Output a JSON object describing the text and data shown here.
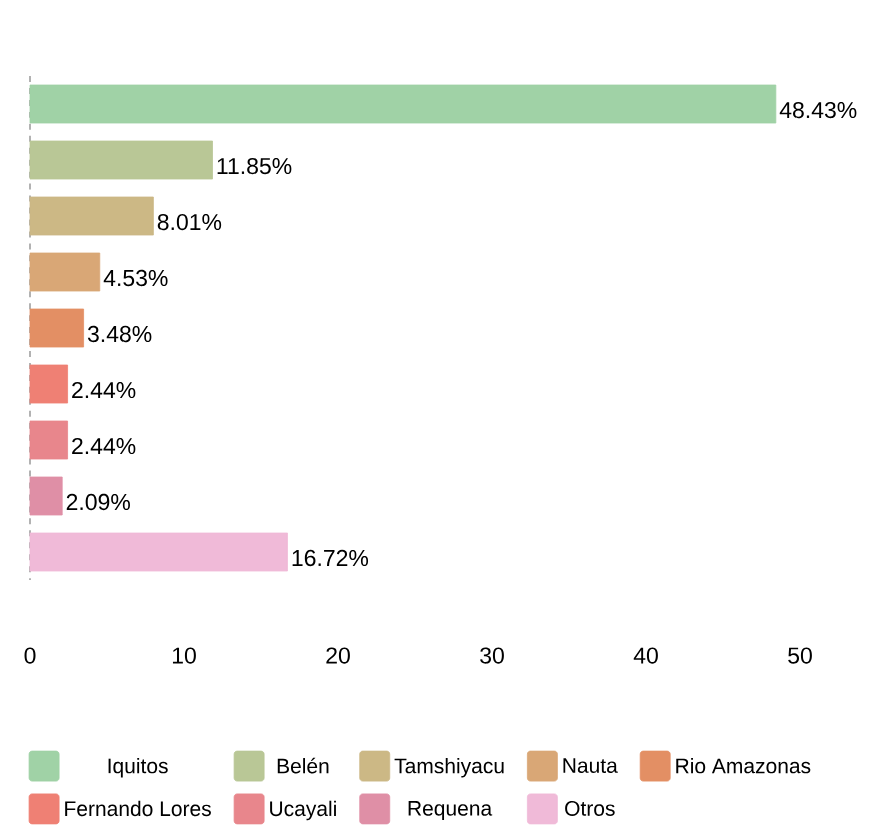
{
  "chart_data": {
    "type": "bar",
    "orientation": "horizontal",
    "categories": [
      null,
      null,
      null,
      null,
      null,
      null,
      null,
      null,
      null
    ],
    "series": [
      {
        "name": "Iquitos",
        "color": "#a0d2a6",
        "values": [
          48.43,
          null,
          null,
          null,
          null,
          null,
          null,
          null,
          null
        ],
        "value_labels": [
          "48.43%",
          null,
          null,
          null,
          null,
          null,
          null,
          null,
          null
        ]
      },
      {
        "name": "Belén",
        "color": "#b9c796",
        "values": [
          null,
          11.85,
          null,
          null,
          null,
          null,
          null,
          null,
          null
        ],
        "value_labels": [
          null,
          "11.85%",
          null,
          null,
          null,
          null,
          null,
          null,
          null
        ]
      },
      {
        "name": "Tamshiyacu",
        "color": "#ccb885",
        "values": [
          null,
          null,
          8.01,
          null,
          null,
          null,
          null,
          null,
          null
        ],
        "value_labels": [
          null,
          null,
          "8.01%",
          null,
          null,
          null,
          null,
          null,
          null
        ]
      },
      {
        "name": "Nauta",
        "color": "#d9a776",
        "values": [
          null,
          null,
          null,
          4.53,
          null,
          null,
          null,
          null,
          null
        ],
        "value_labels": [
          null,
          null,
          null,
          "4.53%",
          null,
          null,
          null,
          null,
          null
        ]
      },
      {
        "name": "Rio Amazonas",
        "color": "#e38f64",
        "values": [
          null,
          null,
          null,
          null,
          3.48,
          null,
          null,
          null,
          null
        ],
        "value_labels": [
          null,
          null,
          null,
          null,
          "3.48%",
          null,
          null,
          null,
          null
        ]
      },
      {
        "name": "Fernando Lores",
        "color": "#ef8074",
        "values": [
          null,
          null,
          null,
          null,
          null,
          2.44,
          null,
          null,
          null
        ],
        "value_labels": [
          null,
          null,
          null,
          null,
          null,
          "2.44%",
          null,
          null,
          null
        ]
      },
      {
        "name": "Ucayali",
        "color": "#e8868c",
        "values": [
          null,
          null,
          null,
          null,
          null,
          null,
          2.44,
          null,
          null
        ],
        "value_labels": [
          null,
          null,
          null,
          null,
          null,
          null,
          "2.44%",
          null,
          null
        ]
      },
      {
        "name": "Requena",
        "color": "#df8fa6",
        "values": [
          null,
          null,
          null,
          null,
          null,
          null,
          null,
          2.09,
          null
        ],
        "value_labels": [
          null,
          null,
          null,
          null,
          null,
          null,
          null,
          "2.09%",
          null
        ]
      },
      {
        "name": "Otros",
        "color": "#f0bad8",
        "values": [
          null,
          null,
          null,
          null,
          null,
          null,
          null,
          null,
          16.72
        ],
        "value_labels": [
          null,
          null,
          null,
          null,
          null,
          null,
          null,
          null,
          "16.72%"
        ]
      }
    ],
    "xlim": [
      0,
      50
    ],
    "xticks": [
      0,
      10,
      20,
      30,
      40,
      50
    ],
    "tick_labels": "x",
    "legend": "bottom"
  }
}
